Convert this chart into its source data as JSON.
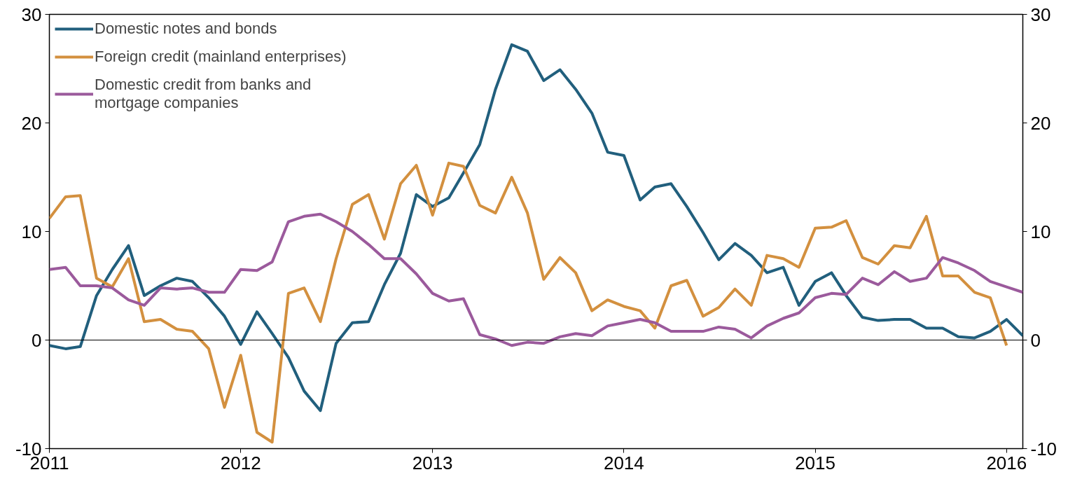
{
  "chart_data": {
    "type": "line",
    "x": [
      "2011-01",
      "2011-02",
      "2011-03",
      "2011-04",
      "2011-05",
      "2011-06",
      "2011-07",
      "2011-08",
      "2011-09",
      "2011-10",
      "2011-11",
      "2011-12",
      "2012-01",
      "2012-02",
      "2012-03",
      "2012-04",
      "2012-05",
      "2012-06",
      "2012-07",
      "2012-08",
      "2012-09",
      "2012-10",
      "2012-11",
      "2012-12",
      "2013-01",
      "2013-02",
      "2013-03",
      "2013-04",
      "2013-05",
      "2013-06",
      "2013-07",
      "2013-08",
      "2013-09",
      "2013-10",
      "2013-11",
      "2013-12",
      "2014-01",
      "2014-02",
      "2014-03",
      "2014-04",
      "2014-05",
      "2014-06",
      "2014-07",
      "2014-08",
      "2014-09",
      "2014-10",
      "2014-11",
      "2014-12",
      "2015-01",
      "2015-02",
      "2015-03",
      "2015-04",
      "2015-05",
      "2015-06",
      "2015-07",
      "2015-08",
      "2015-09",
      "2015-10",
      "2015-11",
      "2015-12",
      "2016-01",
      "2016-02"
    ],
    "series": [
      {
        "name": "Domestic notes and bonds",
        "color": "#215f7d",
        "values": [
          -0.5,
          -0.8,
          -0.6,
          4.1,
          6.5,
          8.7,
          4.1,
          5.0,
          5.7,
          5.4,
          3.9,
          2.2,
          -0.4,
          2.6,
          0.6,
          -1.6,
          -4.7,
          -6.5,
          -0.3,
          1.6,
          1.7,
          5.1,
          8.0,
          13.4,
          12.3,
          13.1,
          15.4,
          18.0,
          23.1,
          27.2,
          26.6,
          23.9,
          24.9,
          23.1,
          20.9,
          17.3,
          17.0,
          12.9,
          14.1,
          14.4,
          12.3,
          9.9,
          7.4,
          8.9,
          7.8,
          6.2,
          6.7,
          3.2,
          5.4,
          6.2,
          4.1,
          2.1,
          1.8,
          1.9,
          1.9,
          1.1,
          1.1,
          0.3,
          0.2,
          0.8,
          1.9,
          0.4
        ]
      },
      {
        "name": "Foreign credit (mainland enterprises)",
        "color": "#d3903f",
        "values": [
          11.2,
          13.2,
          13.3,
          5.7,
          4.9,
          7.5,
          1.7,
          1.9,
          1.0,
          0.8,
          -0.8,
          -6.2,
          -1.4,
          -8.5,
          -9.4,
          4.3,
          4.8,
          1.7,
          7.5,
          12.5,
          13.4,
          9.3,
          14.4,
          16.1,
          11.5,
          16.3,
          16.0,
          12.4,
          11.7,
          15.0,
          11.7,
          5.6,
          7.6,
          6.2,
          2.7,
          3.7,
          3.1,
          2.7,
          1.1,
          5.0,
          5.5,
          2.2,
          3.0,
          4.7,
          3.2,
          7.8,
          7.5,
          6.7,
          10.3,
          10.4,
          11.0,
          7.6,
          7.0,
          8.7,
          8.5,
          11.4,
          5.9,
          5.9,
          4.4,
          3.9,
          -0.5,
          null
        ]
      },
      {
        "name": "Domestic credit from banks and\nmortgage companies",
        "color": "#9b5a9c",
        "values": [
          6.5,
          6.7,
          5.0,
          5.0,
          4.8,
          3.7,
          3.2,
          4.8,
          4.7,
          4.8,
          4.4,
          4.4,
          6.5,
          6.4,
          7.2,
          10.9,
          11.4,
          11.6,
          10.9,
          10.0,
          8.8,
          7.5,
          7.5,
          6.1,
          4.3,
          3.6,
          3.8,
          0.5,
          0.1,
          -0.5,
          -0.2,
          -0.3,
          0.3,
          0.6,
          0.4,
          1.3,
          1.6,
          1.9,
          1.6,
          0.8,
          0.8,
          0.8,
          1.2,
          1.0,
          0.2,
          1.3,
          2.0,
          2.5,
          3.9,
          4.3,
          4.2,
          5.7,
          5.1,
          6.3,
          5.4,
          5.7,
          7.6,
          7.1,
          6.4,
          5.4,
          4.9,
          4.4
        ]
      }
    ],
    "xlim": [
      "2011-01",
      "2016-02"
    ],
    "xticks": [
      "2011",
      "2012",
      "2013",
      "2014",
      "2015",
      "2016"
    ],
    "ylim": [
      -10,
      30
    ],
    "yticks": [
      -10,
      0,
      10,
      20,
      30
    ],
    "y2lim": [
      -10,
      30
    ],
    "y2ticks": [
      -10,
      0,
      10,
      20,
      30
    ],
    "ref_lines": [
      {
        "axis": "y",
        "value": 0,
        "color": "#000000"
      }
    ],
    "grid": false,
    "legend": "top left",
    "marker": "none",
    "line_style": "solid"
  }
}
